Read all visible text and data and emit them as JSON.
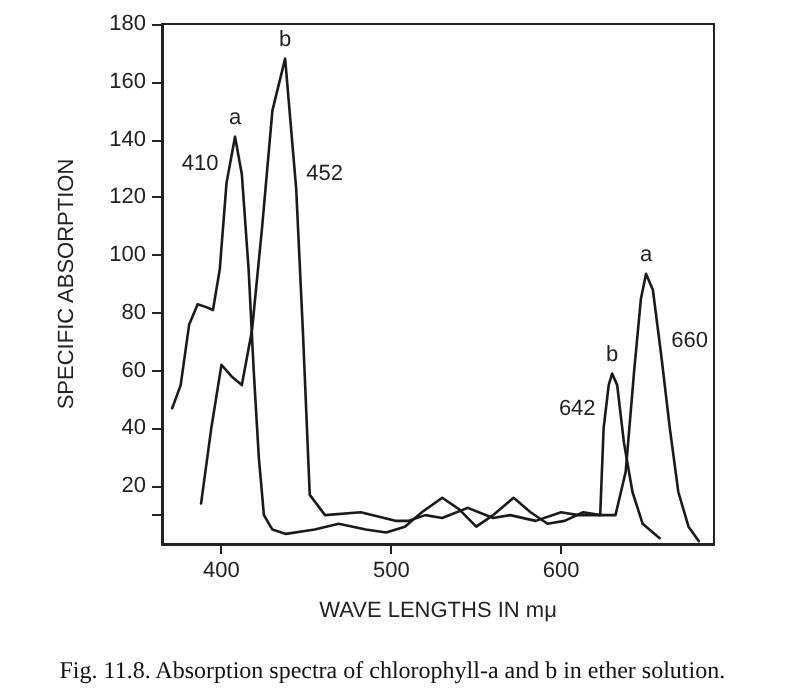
{
  "chart_data": {
    "type": "line",
    "xlabel": "WAVE LENGTHS IN mμ",
    "ylabel": "SPECIFIC ABSORPTION",
    "x": [
      371,
      376,
      381,
      386,
      391,
      395,
      399,
      403,
      408,
      412,
      416,
      419,
      422,
      425,
      430,
      438,
      455,
      469,
      485,
      497,
      508,
      518,
      530,
      540,
      550,
      560,
      572,
      582,
      592,
      602,
      613,
      623,
      632,
      638,
      643,
      647,
      650,
      654,
      659,
      664,
      669,
      675,
      681
    ],
    "series": [
      {
        "name": "a",
        "color": "#1a1a1a",
        "values": [
          47,
          55,
          76,
          83,
          82,
          81,
          95,
          125,
          141,
          128,
          95,
          60,
          30,
          10,
          5,
          3.5,
          5,
          7,
          5,
          4,
          6,
          11,
          16,
          12,
          6,
          10,
          16,
          11,
          7,
          8,
          11,
          10,
          10,
          25,
          60,
          85,
          93.5,
          88,
          65,
          40,
          18,
          6,
          1
        ]
      },
      {
        "name": "b",
        "color": "#1a1a1a",
        "x": [
          388,
          394,
          400,
          406,
          412,
          418,
          424,
          430,
          437.5,
          444,
          448,
          452,
          461,
          482,
          503,
          510,
          520,
          530,
          545,
          560,
          570,
          585,
          600,
          610,
          620,
          623,
          625,
          628,
          630,
          633,
          637,
          642,
          648,
          658
        ],
        "values": [
          14,
          40,
          62,
          58,
          55,
          74,
          110,
          150,
          168,
          123,
          73,
          17,
          10,
          11,
          8,
          8,
          10,
          9,
          12.5,
          9,
          10,
          8,
          11,
          10,
          10,
          10,
          40,
          55,
          59,
          55,
          35,
          18,
          7,
          2
        ]
      }
    ],
    "xlim": [
      365,
      690
    ],
    "xticks": [
      400,
      500,
      600
    ],
    "ylim": [
      0,
      180
    ],
    "yticks": [
      {
        "value": 10,
        "label": null
      },
      20,
      40,
      60,
      80,
      100,
      120,
      140,
      160,
      180
    ],
    "annotations": [
      {
        "text": "410",
        "x": 403,
        "y": 125
      },
      {
        "text": "452",
        "x": 444,
        "y": 123
      },
      {
        "text": "b",
        "x": 630,
        "y": 59
      },
      {
        "text": "642",
        "x": 625,
        "y": 40
      },
      {
        "text": "a",
        "x": 650,
        "y": 93.5
      },
      {
        "text": "660",
        "x": 659,
        "y": 65
      },
      "Fig. 11.8. Absorption spectra of chlorophyll-a and b in ether solution."
    ],
    "grid": false,
    "legend": false,
    "marker": "none",
    "line_style": "solid"
  }
}
